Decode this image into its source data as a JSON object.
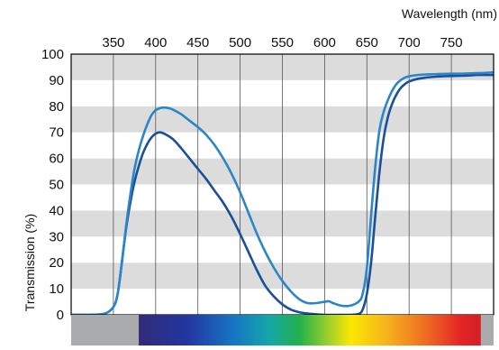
{
  "chart_data": {
    "type": "line",
    "title": "",
    "xlabel": "Wavelength (nm)",
    "ylabel": "Transmission (%)",
    "xlim": [
      300,
      800
    ],
    "ylim": [
      0,
      100
    ],
    "x_ticks": [
      350,
      400,
      450,
      500,
      550,
      600,
      650,
      700,
      750
    ],
    "y_ticks": [
      0,
      10,
      20,
      30,
      40,
      50,
      60,
      70,
      80,
      90,
      100
    ],
    "x_axis_position": "top",
    "grid": "alternating horizontal bands with vertical gridlines",
    "legend": "none",
    "colors": {
      "band_light": "#ffffff",
      "band_dark": "#dcdcdc",
      "grid": "#555555",
      "frame": "#000000",
      "series_dark": "#1a4f9a",
      "series_light": "#2a86c8",
      "spectrum_gray": "#a9abad"
    },
    "series": [
      {
        "color": "#1a4f9a",
        "x": [
          300,
          320,
          340,
          350,
          355,
          360,
          365,
          370,
          375,
          380,
          385,
          390,
          395,
          400,
          405,
          410,
          420,
          430,
          440,
          450,
          460,
          470,
          480,
          490,
          500,
          510,
          520,
          530,
          540,
          550,
          560,
          570,
          580,
          590,
          600,
          610,
          620,
          630,
          640,
          645,
          650,
          655,
          660,
          665,
          670,
          675,
          680,
          685,
          690,
          695,
          700,
          710,
          720,
          730,
          740,
          750,
          760,
          770,
          780,
          790,
          800
        ],
        "y": [
          0,
          0,
          0.5,
          3,
          8,
          20,
          33,
          43,
          51,
          57,
          62,
          65.5,
          68,
          69.5,
          70,
          69.5,
          67.5,
          64,
          60,
          56,
          52,
          47.5,
          43,
          37.5,
          31,
          24,
          17,
          11,
          7,
          4,
          2,
          1,
          0.5,
          0.2,
          0,
          0,
          0,
          0,
          0.3,
          2,
          8,
          20,
          38,
          55,
          68,
          76,
          81,
          84.5,
          87,
          88.5,
          89.5,
          90.5,
          91,
          91.3,
          91.5,
          91.6,
          91.7,
          91.8,
          92,
          92,
          92
        ]
      },
      {
        "color": "#2a86c8",
        "x": [
          300,
          320,
          340,
          350,
          355,
          360,
          365,
          370,
          375,
          380,
          385,
          390,
          395,
          400,
          405,
          410,
          415,
          420,
          430,
          440,
          450,
          460,
          470,
          480,
          490,
          500,
          510,
          520,
          530,
          540,
          550,
          560,
          570,
          580,
          590,
          600,
          605,
          610,
          620,
          630,
          640,
          645,
          650,
          655,
          660,
          665,
          670,
          675,
          680,
          685,
          690,
          695,
          700,
          710,
          720,
          730,
          740,
          750,
          760,
          770,
          780,
          790,
          800
        ],
        "y": [
          0,
          0,
          0.5,
          3,
          8,
          20,
          34,
          46,
          56,
          63,
          68.5,
          73,
          76.5,
          78.5,
          79.3,
          79.5,
          79.3,
          78.8,
          77,
          74.5,
          72,
          69,
          65,
          60,
          54,
          47,
          39,
          31,
          24,
          18,
          13,
          9,
          6,
          4.5,
          4.5,
          5,
          5.2,
          4.5,
          3.5,
          3.5,
          5,
          8,
          18,
          38,
          57,
          71,
          78,
          82.5,
          86,
          88.5,
          90,
          91,
          91.5,
          92,
          92.2,
          92.3,
          92.4,
          92.5,
          92.5,
          92.6,
          92.7,
          92.8,
          93
        ]
      }
    ]
  },
  "spectrum_bar": {
    "visible_start_nm": 380,
    "visible_end_nm": 785
  }
}
